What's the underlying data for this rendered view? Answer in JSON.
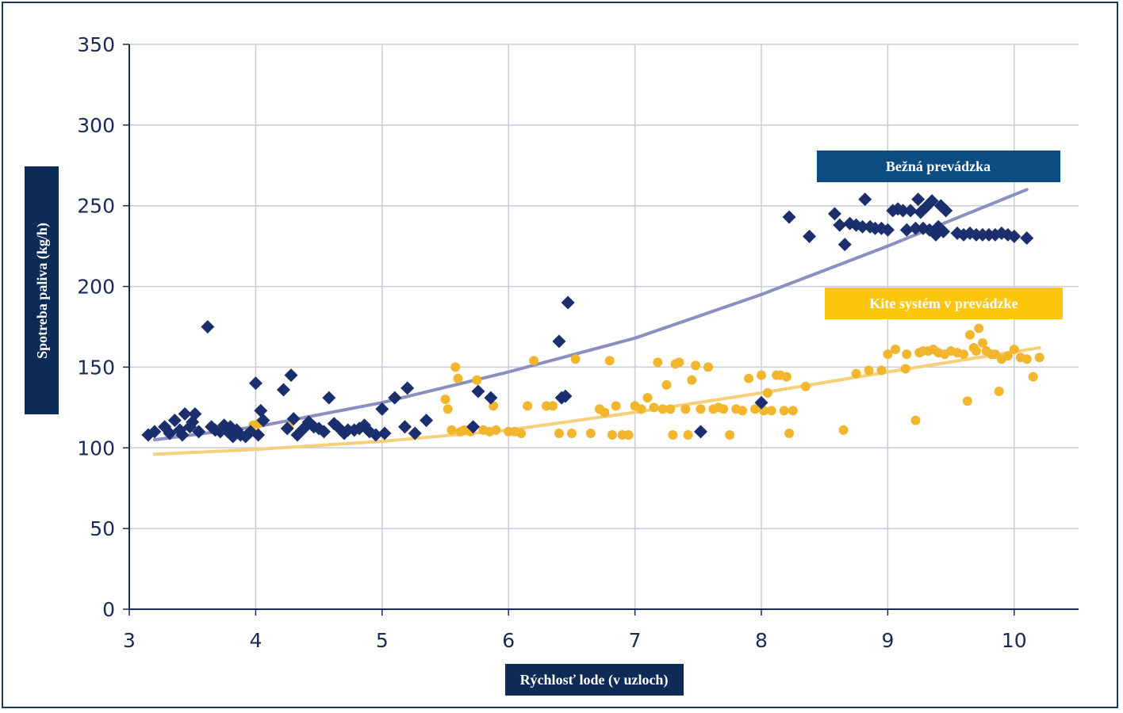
{
  "chart_data": {
    "type": "scatter",
    "xlabel": "Rýchlosť lode (v uzloch)",
    "ylabel": "Spotreba paliva (kg/h)",
    "xlim": [
      3,
      10.5
    ],
    "ylim": [
      0,
      350
    ],
    "x_ticks": [
      "3",
      "4",
      "5",
      "6",
      "7",
      "8",
      "9",
      "10"
    ],
    "y_ticks": [
      "0",
      "50",
      "100",
      "150",
      "200",
      "250",
      "300",
      "350"
    ],
    "grid": true,
    "legend_placement": "top-right",
    "series": [
      {
        "name": "Bežná prevádzka",
        "marker": "diamond",
        "color": "#1b2f6e",
        "points": [
          [
            3.15,
            108
          ],
          [
            3.2,
            110
          ],
          [
            3.28,
            113
          ],
          [
            3.32,
            109
          ],
          [
            3.36,
            117
          ],
          [
            3.4,
            111
          ],
          [
            3.42,
            108
          ],
          [
            3.44,
            121
          ],
          [
            3.48,
            113
          ],
          [
            3.5,
            116
          ],
          [
            3.52,
            121
          ],
          [
            3.55,
            110
          ],
          [
            3.62,
            175
          ],
          [
            3.65,
            113
          ],
          [
            3.68,
            111
          ],
          [
            3.72,
            110
          ],
          [
            3.75,
            114
          ],
          [
            3.78,
            110
          ],
          [
            3.8,
            113
          ],
          [
            3.82,
            107
          ],
          [
            3.85,
            111
          ],
          [
            3.88,
            108
          ],
          [
            3.92,
            107
          ],
          [
            3.96,
            110
          ],
          [
            4.0,
            140
          ],
          [
            4.02,
            108
          ],
          [
            4.04,
            123
          ],
          [
            4.06,
            117
          ],
          [
            4.22,
            136
          ],
          [
            4.25,
            112
          ],
          [
            4.28,
            145
          ],
          [
            4.3,
            118
          ],
          [
            4.33,
            108
          ],
          [
            4.38,
            112
          ],
          [
            4.42,
            116
          ],
          [
            4.46,
            113
          ],
          [
            4.5,
            112
          ],
          [
            4.54,
            110
          ],
          [
            4.58,
            131
          ],
          [
            4.62,
            115
          ],
          [
            4.65,
            113
          ],
          [
            4.7,
            109
          ],
          [
            4.73,
            111
          ],
          [
            4.78,
            111
          ],
          [
            4.82,
            112
          ],
          [
            4.86,
            114
          ],
          [
            4.9,
            110
          ],
          [
            4.95,
            108
          ],
          [
            5.0,
            124
          ],
          [
            5.02,
            109
          ],
          [
            5.1,
            131
          ],
          [
            5.18,
            113
          ],
          [
            5.2,
            137
          ],
          [
            5.26,
            109
          ],
          [
            5.35,
            117
          ],
          [
            5.72,
            113
          ],
          [
            5.76,
            135
          ],
          [
            5.86,
            131
          ],
          [
            6.4,
            166
          ],
          [
            6.42,
            131
          ],
          [
            6.45,
            132
          ],
          [
            6.47,
            190
          ],
          [
            7.52,
            110
          ],
          [
            8.0,
            128
          ],
          [
            8.22,
            243
          ],
          [
            8.38,
            231
          ],
          [
            8.58,
            245
          ],
          [
            8.62,
            238
          ],
          [
            8.66,
            226
          ],
          [
            8.7,
            239
          ],
          [
            8.75,
            238
          ],
          [
            8.8,
            237
          ],
          [
            8.82,
            254
          ],
          [
            8.86,
            237
          ],
          [
            8.9,
            236
          ],
          [
            8.95,
            236
          ],
          [
            9.0,
            235
          ],
          [
            9.04,
            247
          ],
          [
            9.08,
            248
          ],
          [
            9.12,
            247
          ],
          [
            9.15,
            235
          ],
          [
            9.18,
            247
          ],
          [
            9.22,
            236
          ],
          [
            9.24,
            254
          ],
          [
            9.26,
            246
          ],
          [
            9.28,
            236
          ],
          [
            9.3,
            249
          ],
          [
            9.33,
            235
          ],
          [
            9.35,
            253
          ],
          [
            9.38,
            232
          ],
          [
            9.4,
            237
          ],
          [
            9.42,
            250
          ],
          [
            9.44,
            234
          ],
          [
            9.46,
            247
          ],
          [
            9.55,
            233
          ],
          [
            9.6,
            232
          ],
          [
            9.65,
            233
          ],
          [
            9.7,
            232
          ],
          [
            9.75,
            232
          ],
          [
            9.8,
            232
          ],
          [
            9.85,
            232
          ],
          [
            9.9,
            233
          ],
          [
            9.95,
            232
          ],
          [
            10.0,
            231
          ],
          [
            10.1,
            230
          ]
        ],
        "trend": [
          [
            3.2,
            105
          ],
          [
            4,
            113
          ],
          [
            5,
            128
          ],
          [
            6,
            147
          ],
          [
            7,
            168
          ],
          [
            8,
            195
          ],
          [
            9,
            225
          ],
          [
            10.1,
            260
          ]
        ]
      },
      {
        "name": "Kite systém v prevádzke",
        "marker": "circle",
        "color": "#f2b62e",
        "points": [
          [
            3.98,
            114
          ],
          [
            4.02,
            115
          ],
          [
            4.04,
            116
          ],
          [
            4.26,
            113
          ],
          [
            5.5,
            130
          ],
          [
            5.52,
            124
          ],
          [
            5.55,
            111
          ],
          [
            5.58,
            150
          ],
          [
            5.6,
            143
          ],
          [
            5.62,
            110
          ],
          [
            5.65,
            111
          ],
          [
            5.7,
            110
          ],
          [
            5.75,
            142
          ],
          [
            5.8,
            111
          ],
          [
            5.85,
            110
          ],
          [
            5.88,
            126
          ],
          [
            5.9,
            111
          ],
          [
            6.0,
            110
          ],
          [
            6.05,
            110
          ],
          [
            6.1,
            109
          ],
          [
            6.15,
            126
          ],
          [
            6.2,
            154
          ],
          [
            6.3,
            126
          ],
          [
            6.35,
            126
          ],
          [
            6.4,
            109
          ],
          [
            6.5,
            109
          ],
          [
            6.53,
            155
          ],
          [
            6.65,
            109
          ],
          [
            6.72,
            124
          ],
          [
            6.76,
            122
          ],
          [
            6.8,
            154
          ],
          [
            6.82,
            108
          ],
          [
            6.85,
            126
          ],
          [
            6.9,
            108
          ],
          [
            6.95,
            108
          ],
          [
            7.0,
            126
          ],
          [
            7.05,
            124
          ],
          [
            7.1,
            131
          ],
          [
            7.15,
            125
          ],
          [
            7.18,
            153
          ],
          [
            7.22,
            124
          ],
          [
            7.25,
            139
          ],
          [
            7.28,
            124
          ],
          [
            7.3,
            108
          ],
          [
            7.32,
            152
          ],
          [
            7.35,
            153
          ],
          [
            7.4,
            124
          ],
          [
            7.42,
            108
          ],
          [
            7.45,
            142
          ],
          [
            7.48,
            151
          ],
          [
            7.52,
            124
          ],
          [
            7.58,
            150
          ],
          [
            7.62,
            124
          ],
          [
            7.66,
            125
          ],
          [
            7.7,
            124
          ],
          [
            7.75,
            108
          ],
          [
            7.8,
            124
          ],
          [
            7.85,
            123
          ],
          [
            7.9,
            143
          ],
          [
            7.95,
            124
          ],
          [
            8.0,
            145
          ],
          [
            8.02,
            123
          ],
          [
            8.05,
            134
          ],
          [
            8.08,
            123
          ],
          [
            8.12,
            145
          ],
          [
            8.15,
            145
          ],
          [
            8.18,
            123
          ],
          [
            8.2,
            144
          ],
          [
            8.22,
            109
          ],
          [
            8.25,
            123
          ],
          [
            8.35,
            138
          ],
          [
            8.65,
            111
          ],
          [
            8.75,
            146
          ],
          [
            8.85,
            148
          ],
          [
            8.95,
            148
          ],
          [
            9.0,
            158
          ],
          [
            9.06,
            161
          ],
          [
            9.14,
            149
          ],
          [
            9.15,
            158
          ],
          [
            9.22,
            117
          ],
          [
            9.25,
            159
          ],
          [
            9.28,
            160
          ],
          [
            9.32,
            160
          ],
          [
            9.36,
            161
          ],
          [
            9.4,
            159
          ],
          [
            9.45,
            158
          ],
          [
            9.5,
            160
          ],
          [
            9.55,
            159
          ],
          [
            9.6,
            158
          ],
          [
            9.63,
            129
          ],
          [
            9.65,
            170
          ],
          [
            9.68,
            162
          ],
          [
            9.7,
            160
          ],
          [
            9.72,
            174
          ],
          [
            9.75,
            165
          ],
          [
            9.78,
            160
          ],
          [
            9.82,
            158
          ],
          [
            9.85,
            158
          ],
          [
            9.88,
            135
          ],
          [
            9.9,
            155
          ],
          [
            9.95,
            157
          ],
          [
            10.0,
            161
          ],
          [
            10.05,
            156
          ],
          [
            10.1,
            155
          ],
          [
            10.15,
            144
          ],
          [
            10.2,
            156
          ]
        ],
        "trend": [
          [
            3.2,
            96
          ],
          [
            4,
            99
          ],
          [
            5,
            104
          ],
          [
            6,
            111
          ],
          [
            7,
            122
          ],
          [
            8,
            134
          ],
          [
            9,
            147
          ],
          [
            10.2,
            162
          ]
        ]
      }
    ]
  }
}
